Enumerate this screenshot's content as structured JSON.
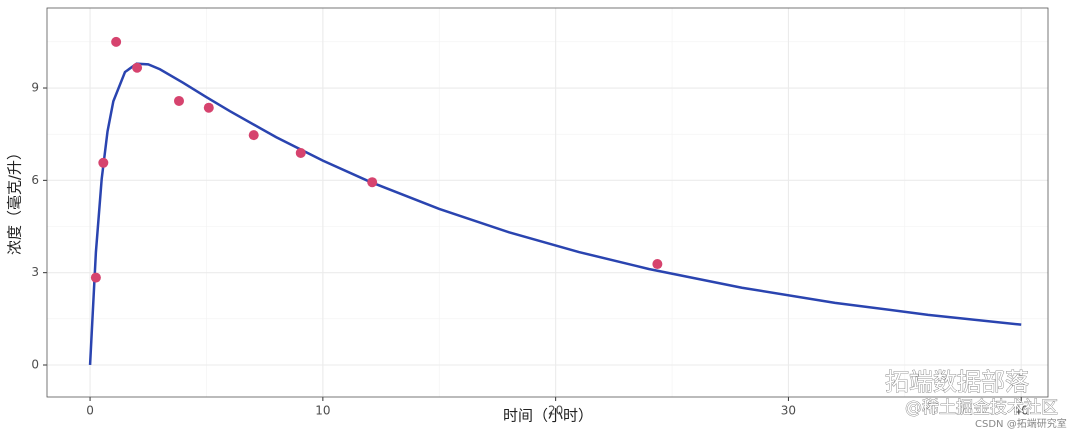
{
  "chart_data": {
    "type": "scatter",
    "xlabel": "时间（小时）",
    "ylabel": "浓度（毫克/升）",
    "xlim": [
      -1.85,
      41.15
    ],
    "ylim": [
      -1.04,
      11.6
    ],
    "xticks": [
      0,
      10,
      20,
      30,
      40
    ],
    "yticks": [
      0,
      3,
      6,
      9
    ],
    "xminor": [
      5,
      15,
      25,
      35
    ],
    "yminor": [
      1.5,
      4.5,
      7.5,
      10.5
    ],
    "grid": true,
    "points": {
      "color": "#d6436e",
      "x": [
        0.25,
        0.57,
        1.12,
        2.02,
        3.82,
        5.1,
        7.03,
        9.05,
        12.12,
        24.37
      ],
      "y": [
        2.84,
        6.57,
        10.5,
        9.66,
        8.58,
        8.36,
        7.47,
        6.89,
        5.94,
        3.28
      ]
    },
    "curve": {
      "color": "#2a44b0",
      "x": [
        0,
        0.25,
        0.5,
        0.75,
        1,
        1.5,
        2,
        2.5,
        3,
        4,
        5,
        6,
        8,
        10,
        12,
        15,
        18,
        21,
        24,
        28,
        32,
        36,
        40
      ],
      "y": [
        0,
        3.66,
        6.05,
        7.59,
        8.57,
        9.52,
        9.79,
        9.77,
        9.61,
        9.17,
        8.7,
        8.25,
        7.4,
        6.64,
        5.96,
        5.07,
        4.31,
        3.67,
        3.12,
        2.51,
        2.02,
        1.63,
        1.31
      ]
    },
    "annotations": [
      "拓端数据部落",
      "@稀土掘金技术社区",
      "CSDN @拓端研究室"
    ]
  }
}
